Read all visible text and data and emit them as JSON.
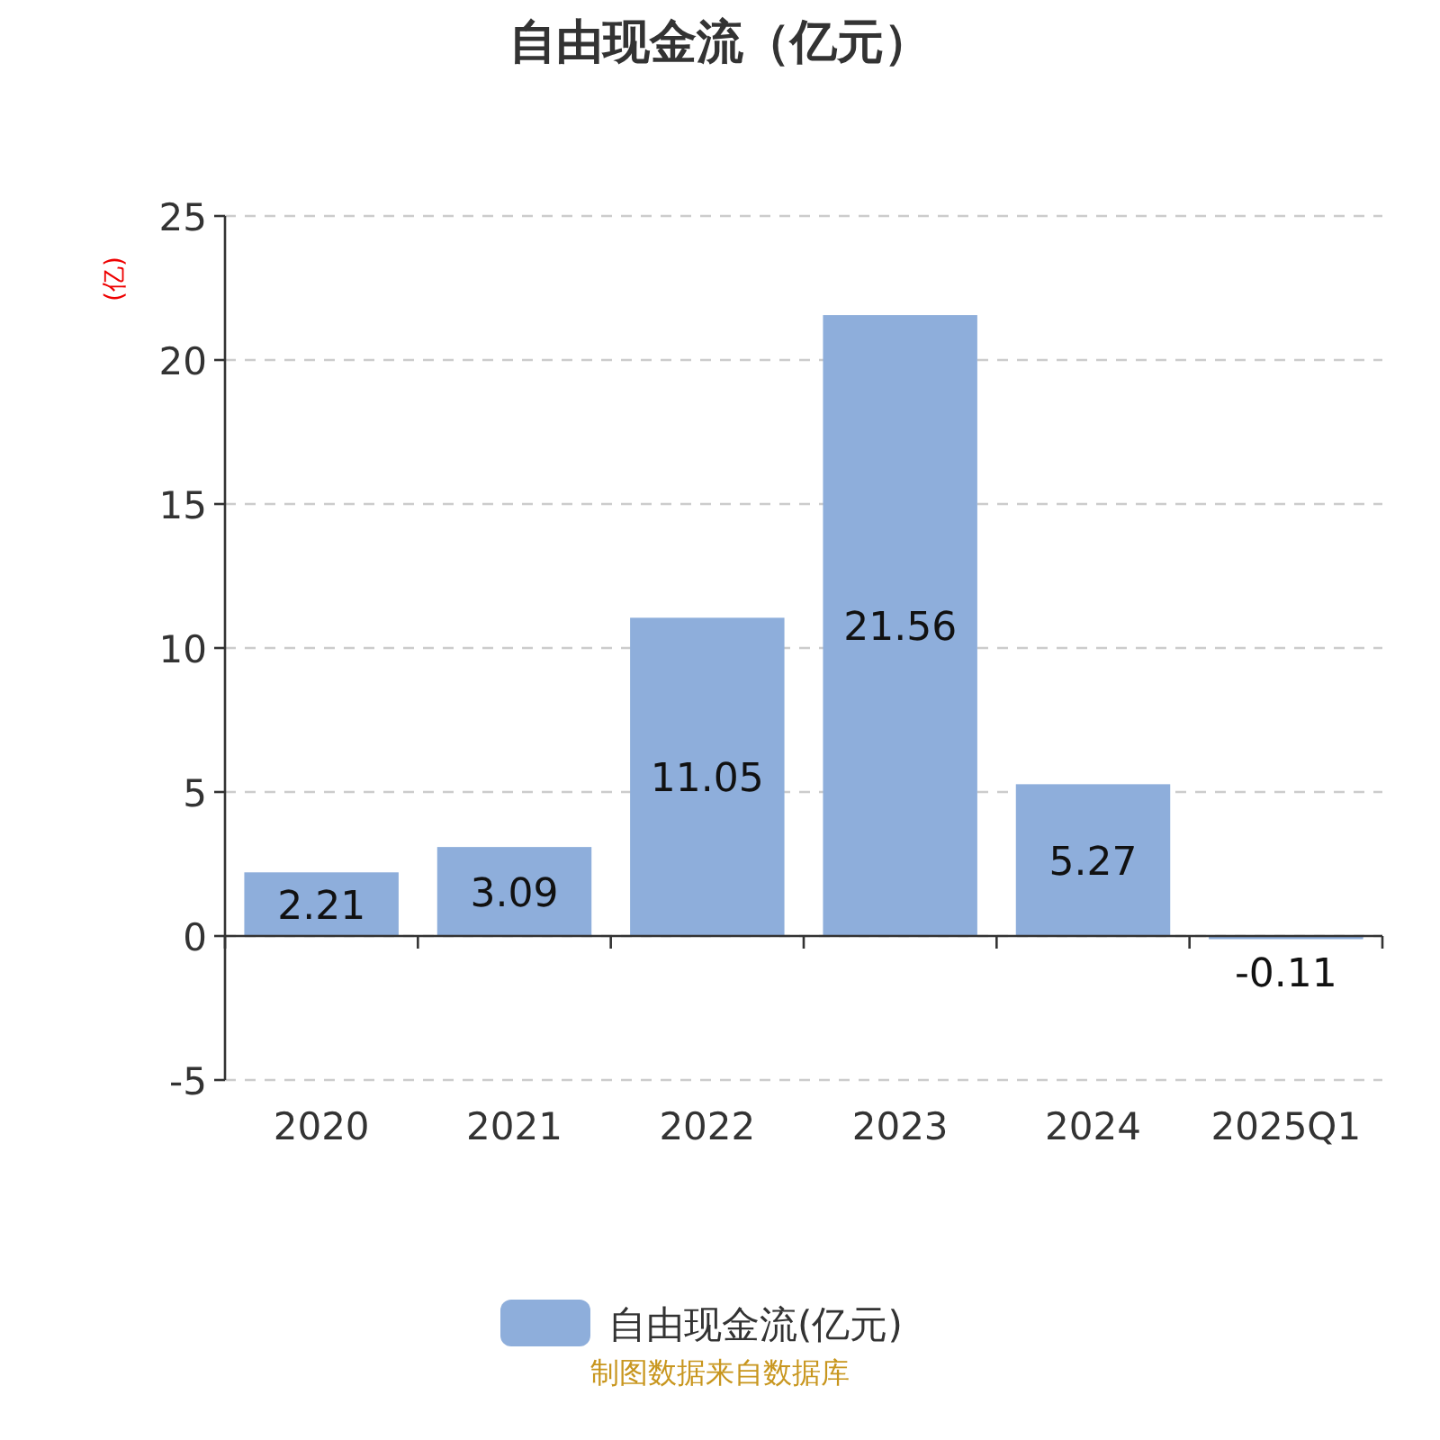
{
  "chart_data": {
    "type": "bar",
    "title": "自由现金流（亿元）",
    "ylabel": "(亿)",
    "categories": [
      "2020",
      "2021",
      "2022",
      "2023",
      "2024",
      "2025Q1"
    ],
    "series": [
      {
        "name": "自由现金流(亿元)",
        "color": "#8eaedb",
        "values": [
          2.21,
          3.09,
          11.05,
          21.56,
          5.27,
          -0.11
        ]
      }
    ],
    "ylim": [
      -5,
      25
    ],
    "yticks": [
      -5,
      0,
      5,
      10,
      15,
      20,
      25
    ],
    "grid": "y",
    "legend": "bottom",
    "data_labels": true,
    "annotations": [
      "制图数据来自数据库"
    ]
  }
}
